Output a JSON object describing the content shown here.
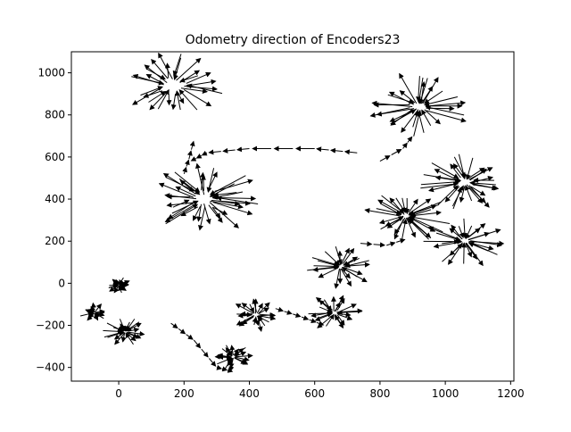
{
  "chart_data": {
    "type": "quiver",
    "title": "Odometry direction of Encoders23",
    "xlabel": "",
    "ylabel": "",
    "xlim": [
      -145,
      1210
    ],
    "ylim": [
      -465,
      1100
    ],
    "x_ticks": [
      0,
      200,
      400,
      600,
      800,
      1000,
      1200
    ],
    "y_ticks": [
      -400,
      -200,
      0,
      200,
      400,
      600,
      800,
      1000
    ],
    "x_tick_labels": [
      "0",
      "200",
      "400",
      "600",
      "800",
      "1000",
      "1200"
    ],
    "y_tick_labels": [
      "−400",
      "−200",
      "0",
      "200",
      "400",
      "600",
      "800",
      "1000"
    ],
    "grid": false,
    "arrow_color": "#000000",
    "clusters": [
      {
        "cx": 165,
        "cy": 940,
        "r_in": 50,
        "r_out": 160,
        "n": 30,
        "style": "radial"
      },
      {
        "cx": 260,
        "cy": 400,
        "r_in": 50,
        "r_out": 180,
        "n": 40,
        "style": "radial"
      },
      {
        "cx": 920,
        "cy": 840,
        "r_in": 30,
        "r_out": 170,
        "n": 30,
        "style": "radial"
      },
      {
        "cx": 1060,
        "cy": 480,
        "r_in": 30,
        "r_out": 140,
        "n": 30,
        "style": "radial"
      },
      {
        "cx": 880,
        "cy": 320,
        "r_in": 20,
        "r_out": 140,
        "n": 30,
        "style": "radial"
      },
      {
        "cx": 1060,
        "cy": 200,
        "r_in": 20,
        "r_out": 130,
        "n": 26,
        "style": "radial"
      },
      {
        "cx": 680,
        "cy": 80,
        "r_in": 15,
        "r_out": 110,
        "n": 22,
        "style": "radial"
      },
      {
        "cx": 660,
        "cy": -140,
        "r_in": 15,
        "r_out": 90,
        "n": 22,
        "style": "radial"
      },
      {
        "cx": 420,
        "cy": -150,
        "r_in": 15,
        "r_out": 80,
        "n": 22,
        "style": "radial"
      },
      {
        "cx": 350,
        "cy": -350,
        "r_in": 10,
        "r_out": 70,
        "n": 22,
        "style": "radial"
      },
      {
        "cx": 20,
        "cy": -230,
        "r_in": 10,
        "r_out": 70,
        "n": 20,
        "style": "radial"
      },
      {
        "cx": -75,
        "cy": -140,
        "r_in": 5,
        "r_out": 50,
        "n": 14,
        "style": "radial"
      },
      {
        "cx": 0,
        "cy": -10,
        "r_in": 5,
        "r_out": 40,
        "n": 16,
        "style": "radial"
      }
    ],
    "paths": [
      {
        "points": [
          [
            160,
            -190
          ],
          [
            230,
            -270
          ],
          [
            300,
            -400
          ],
          [
            350,
            -420
          ]
        ],
        "n": 10
      },
      {
        "points": [
          [
            730,
            620
          ],
          [
            600,
            640
          ],
          [
            400,
            640
          ],
          [
            270,
            620
          ],
          [
            220,
            580
          ]
        ],
        "n": 11
      },
      {
        "points": [
          [
            200,
            520
          ],
          [
            215,
            590
          ],
          [
            230,
            680
          ]
        ],
        "n": 4
      },
      {
        "points": [
          [
            480,
            -120
          ],
          [
            560,
            -160
          ],
          [
            630,
            -200
          ]
        ],
        "n": 5
      },
      {
        "points": [
          [
            740,
            190
          ],
          [
            820,
            180
          ],
          [
            880,
            210
          ]
        ],
        "n": 4
      },
      {
        "points": [
          [
            800,
            580
          ],
          [
            870,
            640
          ],
          [
            900,
            700
          ]
        ],
        "n": 4
      }
    ]
  }
}
